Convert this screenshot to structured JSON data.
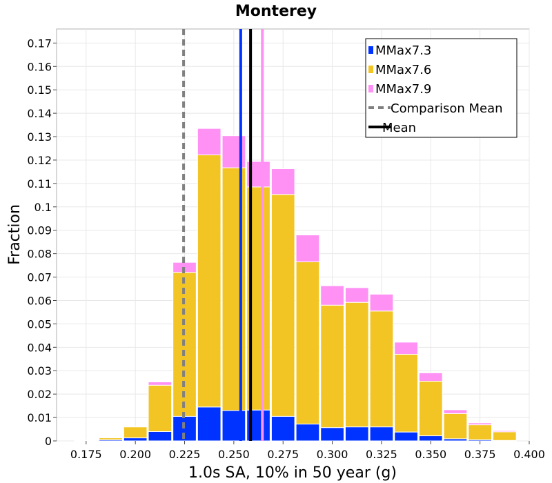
{
  "chart_data": {
    "type": "bar",
    "stacked": true,
    "title": "Monterey",
    "xlabel": "1.0s SA, 10% in 50 year (g)",
    "ylabel": "Fraction",
    "xlim": [
      0.16,
      0.4
    ],
    "ylim": [
      0,
      0.176
    ],
    "grid": true,
    "legend_position": "top-right",
    "bin_width": 0.0125,
    "bin_centers": [
      0.175,
      0.1875,
      0.2,
      0.2125,
      0.225,
      0.2375,
      0.25,
      0.2625,
      0.275,
      0.2875,
      0.3,
      0.3125,
      0.325,
      0.3375,
      0.35,
      0.3625,
      0.375,
      0.3875
    ],
    "series": [
      {
        "name": "MMax7.3",
        "color": "#0033ff",
        "values": [
          0.0002,
          0.0005,
          0.0013,
          0.004,
          0.0105,
          0.0145,
          0.013,
          0.0132,
          0.0105,
          0.0072,
          0.0057,
          0.006,
          0.006,
          0.0038,
          0.0022,
          0.0009,
          0.0005,
          0.0002
        ]
      },
      {
        "name": "MMax7.6",
        "color": "#f2c524",
        "values": [
          0.0002,
          0.0008,
          0.0047,
          0.0198,
          0.0615,
          0.1077,
          0.1037,
          0.0953,
          0.0948,
          0.0693,
          0.0523,
          0.0532,
          0.0495,
          0.0332,
          0.0233,
          0.0108,
          0.0064,
          0.0037
        ]
      },
      {
        "name": "MMax7.9",
        "color": "#ff90f4",
        "values": [
          0.0,
          0.0,
          0.0002,
          0.0014,
          0.0043,
          0.0113,
          0.0137,
          0.0109,
          0.011,
          0.0115,
          0.0083,
          0.0063,
          0.0072,
          0.0052,
          0.0036,
          0.0016,
          0.0008,
          0.0005
        ]
      }
    ],
    "x_ticks": [
      "0.175",
      "0.200",
      "0.225",
      "0.250",
      "0.275",
      "0.300",
      "0.325",
      "0.350",
      "0.375",
      "0.400"
    ],
    "y_ticks": [
      "0",
      "0.01",
      "0.02",
      "0.03",
      "0.04",
      "0.05",
      "0.06",
      "0.07",
      "0.08",
      "0.09",
      "0.1",
      "0.11",
      "0.12",
      "0.13",
      "0.14",
      "0.15",
      "0.16",
      "0.17"
    ],
    "vertical_lines": [
      {
        "name": "Comparison Mean",
        "x": 0.2245,
        "color": "#808080",
        "style": "dashed"
      },
      {
        "name": "Mean",
        "x": 0.2585,
        "color": "#000000",
        "style": "solid"
      },
      {
        "series": "MMax7.3",
        "x": 0.2535,
        "color": "#0033ff",
        "style": "solid"
      },
      {
        "series": "MMax7.9",
        "x": 0.2645,
        "color": "#ff90f4",
        "style": "solid"
      }
    ],
    "legend": [
      {
        "label": "MMax7.3",
        "kind": "box",
        "color": "#0033ff"
      },
      {
        "label": "MMax7.6",
        "kind": "box",
        "color": "#f2c524"
      },
      {
        "label": "MMax7.9",
        "kind": "box",
        "color": "#ff90f4"
      },
      {
        "label": "Comparison Mean",
        "kind": "dashed",
        "color": "#808080"
      },
      {
        "label": "Mean",
        "kind": "line",
        "color": "#000000"
      }
    ]
  }
}
